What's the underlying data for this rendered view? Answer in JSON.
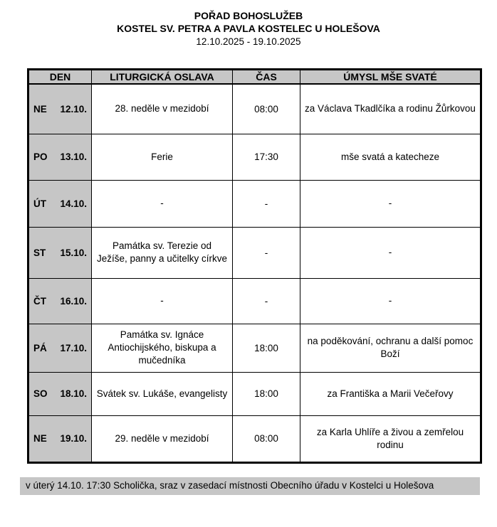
{
  "header": {
    "title_line1": "POŘAD BOHOSLUŽEB",
    "title_line2": "KOSTEL SV. PETRA A PAVLA KOSTELEC U HOLEŠOVA",
    "date_range": "12.10.2025 - 19.10.2025"
  },
  "table": {
    "columns": [
      "DEN",
      "LITURGICKÁ OSLAVA",
      "ČAS",
      "ÚMYSL MŠE SVATÉ"
    ],
    "rows": [
      {
        "day": "NE",
        "date": "12.10.",
        "celebration": "28. neděle v mezidobí",
        "time": "08:00",
        "intention": "za Václava Tkadlčíka a rodinu Žůrkovou"
      },
      {
        "day": "PO",
        "date": "13.10.",
        "celebration": "Ferie",
        "time": "17:30",
        "intention": "mše svatá a katecheze"
      },
      {
        "day": "ÚT",
        "date": "14.10.",
        "celebration": "-",
        "time": "-",
        "intention": "-"
      },
      {
        "day": "ST",
        "date": "15.10.",
        "celebration": "Památka sv. Terezie od Ježíše, panny a učitelky církve",
        "time": "-",
        "intention": "-"
      },
      {
        "day": "ČT",
        "date": "16.10.",
        "celebration": "-",
        "time": "-",
        "intention": "-"
      },
      {
        "day": "PÁ",
        "date": "17.10.",
        "celebration": "Památka sv. Ignáce Antiochijského, biskupa a mučedníka",
        "time": "18:00",
        "intention": "na poděkování, ochranu a další pomoc Boží"
      },
      {
        "day": "SO",
        "date": "18.10.",
        "celebration": "Svátek sv. Lukáše, evangelisty",
        "time": "18:00",
        "intention": "za Františka a Marii Večeřovy"
      },
      {
        "day": "NE",
        "date": "19.10.",
        "celebration": "29. neděle v mezidobí",
        "time": "08:00",
        "intention": "za Karla Uhlíře a živou a zemřelou rodinu"
      }
    ]
  },
  "footer": {
    "note": "v úterý 14.10. 17:30 Scholička, sraz v zasedací místnosti Obecního úřadu v Kostelci u Holešova"
  },
  "colors": {
    "cell_gray": "#c6c6c6",
    "border_black": "#000000",
    "page_bg": "#ffffff",
    "text": "#000000"
  }
}
